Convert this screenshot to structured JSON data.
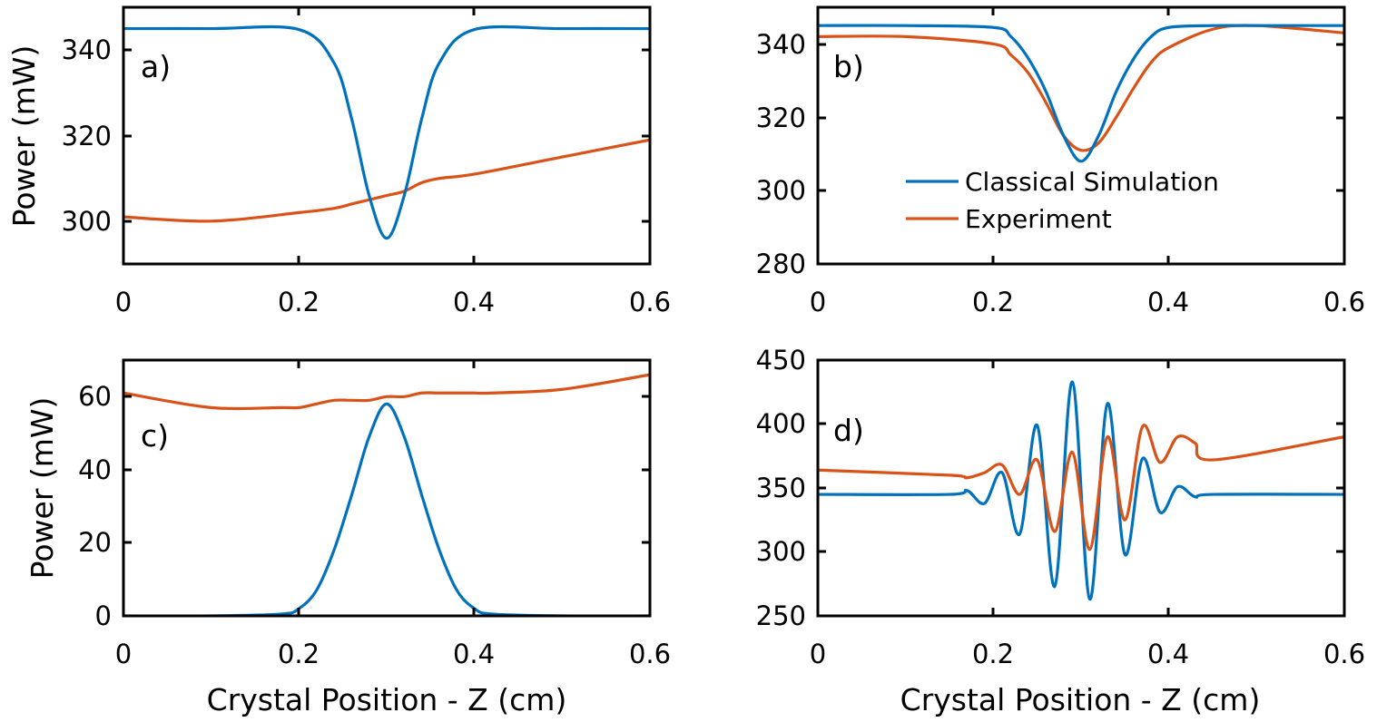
{
  "figure": {
    "x_axis_label": "Crystal Position - Z (cm)"
  },
  "legend": {
    "entries": [
      {
        "label": "Classical Simulation",
        "color": "#0072BD"
      },
      {
        "label": "Experiment",
        "color": "#D95319"
      }
    ]
  },
  "chart_data": [
    {
      "type": "line",
      "panel": "a)",
      "xlabel": "",
      "ylabel": "Power (mW)",
      "xlim": [
        0,
        0.6
      ],
      "ylim": [
        290,
        350
      ],
      "xticks": [
        "0",
        "0.2",
        "0.4",
        "0.6"
      ],
      "yticks": [
        "300",
        "320",
        "340"
      ],
      "x": [
        0,
        0.1,
        0.2,
        0.24,
        0.26,
        0.28,
        0.3,
        0.32,
        0.34,
        0.36,
        0.4,
        0.5,
        0.6
      ],
      "series": [
        {
          "name": "Classical Simulation",
          "color": "#0072BD",
          "values": [
            345,
            345,
            344.8,
            337,
            324,
            306,
            296,
            306,
            324,
            337,
            344.8,
            345,
            345
          ]
        },
        {
          "name": "Experiment",
          "color": "#D95319",
          "values": [
            301,
            300,
            302,
            303,
            304,
            305,
            306,
            307,
            309,
            310,
            311,
            315,
            319
          ]
        }
      ]
    },
    {
      "type": "line",
      "panel": "b)",
      "xlabel": "",
      "ylabel": "",
      "xlim": [
        0,
        0.6
      ],
      "ylim": [
        280,
        350
      ],
      "xticks": [
        "0",
        "0.2",
        "0.4",
        "0.6"
      ],
      "yticks": [
        "280",
        "300",
        "320",
        "340"
      ],
      "x": [
        0,
        0.1,
        0.2,
        0.22,
        0.24,
        0.26,
        0.28,
        0.3,
        0.32,
        0.34,
        0.36,
        0.38,
        0.4,
        0.45,
        0.5,
        0.6
      ],
      "series": [
        {
          "name": "Classical Simulation",
          "color": "#0072BD",
          "values": [
            345,
            345,
            344.5,
            342,
            336,
            327,
            315,
            308,
            315,
            327,
            336,
            342,
            344.5,
            345,
            345,
            345
          ]
        },
        {
          "name": "Experiment",
          "color": "#D95319",
          "values": [
            342,
            342,
            340,
            337,
            332,
            324,
            315,
            311,
            313,
            320,
            328,
            335,
            339,
            344,
            345,
            343
          ]
        }
      ]
    },
    {
      "type": "line",
      "panel": "c)",
      "xlabel": "Crystal Position - Z (cm)",
      "ylabel": "Power (mW)",
      "xlim": [
        0,
        0.6
      ],
      "ylim": [
        0,
        70
      ],
      "xticks": [
        "0",
        "0.2",
        "0.4",
        "0.6"
      ],
      "yticks": [
        "0",
        "20",
        "40",
        "60"
      ],
      "x": [
        0,
        0.1,
        0.18,
        0.2,
        0.22,
        0.24,
        0.26,
        0.28,
        0.3,
        0.32,
        0.34,
        0.36,
        0.38,
        0.4,
        0.42,
        0.5,
        0.6
      ],
      "series": [
        {
          "name": "Classical Simulation",
          "color": "#0072BD",
          "values": [
            0,
            0,
            0.5,
            2,
            7,
            18,
            33,
            49,
            58,
            49,
            33,
            18,
            7,
            2,
            0.5,
            0,
            0
          ]
        },
        {
          "name": "Experiment",
          "color": "#D95319",
          "values": [
            61,
            57,
            57,
            57,
            58,
            59,
            59,
            59,
            60,
            60,
            61,
            61,
            61,
            61,
            61,
            62,
            66
          ]
        }
      ]
    },
    {
      "type": "line",
      "panel": "d)",
      "xlabel": "Crystal Position - Z (cm)",
      "ylabel": "",
      "xlim": [
        0,
        0.6
      ],
      "ylim": [
        250,
        450
      ],
      "xticks": [
        "0",
        "0.2",
        "0.4",
        "0.6"
      ],
      "yticks": [
        "250",
        "300",
        "350",
        "400",
        "450"
      ],
      "x": [
        0,
        0.15,
        0.17,
        0.19,
        0.21,
        0.23,
        0.25,
        0.27,
        0.29,
        0.31,
        0.33,
        0.35,
        0.37,
        0.39,
        0.41,
        0.43,
        0.45,
        0.6
      ],
      "series": [
        {
          "name": "Classical Simulation",
          "color": "#0072BD",
          "values": [
            345,
            345,
            348,
            338,
            362,
            314,
            399,
            273,
            433,
            263,
            416,
            298,
            373,
            331,
            351,
            343,
            345,
            345
          ]
        },
        {
          "name": "Experiment",
          "color": "#D95319",
          "values": [
            364,
            360,
            358,
            362,
            368,
            345,
            372,
            316,
            378,
            302,
            390,
            325,
            398,
            370,
            390,
            385,
            372,
            390
          ]
        }
      ]
    }
  ]
}
